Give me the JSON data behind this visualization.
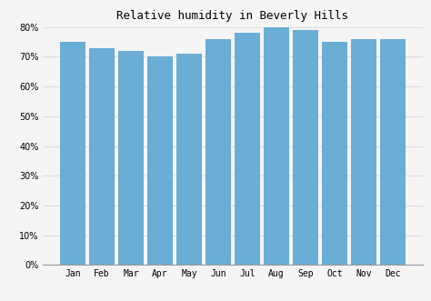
{
  "title": "Relative humidity in Beverly Hills",
  "categories": [
    "Jan",
    "Feb",
    "Mar",
    "Apr",
    "May",
    "Jun",
    "Jul",
    "Aug",
    "Sep",
    "Oct",
    "Nov",
    "Dec"
  ],
  "values": [
    75,
    73,
    72,
    70,
    71,
    76,
    78,
    80,
    79,
    75,
    76,
    76
  ],
  "bar_color": "#6aadd5",
  "bar_edge_color": "#6aadd5",
  "background_color": "#f5f5f5",
  "plot_background_color": "#f5f5f5",
  "grid_color": "#dddddd",
  "ylim_max": 80,
  "yticks": [
    0,
    10,
    20,
    30,
    40,
    50,
    60,
    70,
    80
  ],
  "title_fontsize": 9,
  "tick_fontsize": 7,
  "bar_width": 0.85
}
